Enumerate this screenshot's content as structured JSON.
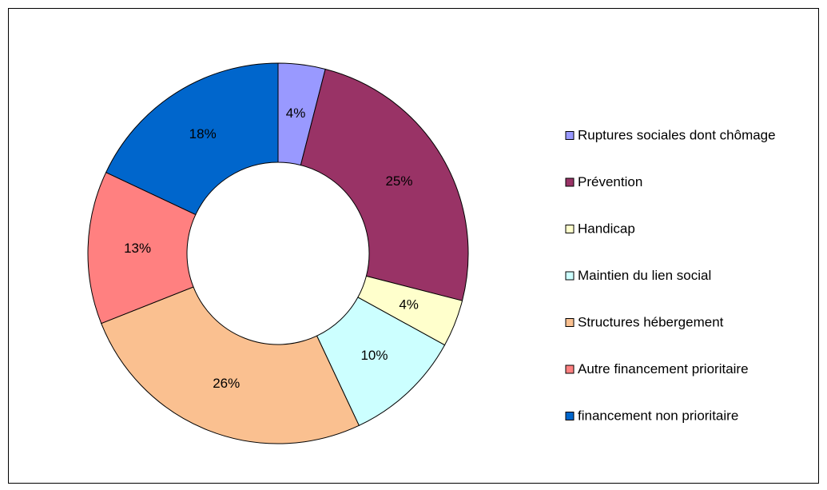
{
  "chart_data": {
    "type": "donut",
    "categories": [
      "Ruptures sociales dont chômage",
      "Prévention",
      "Handicap",
      "Maintien du lien social",
      "Structures hébergement",
      "Autre financement prioritaire",
      "financement non prioritaire"
    ],
    "values": [
      4,
      25,
      4,
      10,
      26,
      13,
      18
    ],
    "value_labels": [
      "4%",
      "25%",
      "4%",
      "10%",
      "26%",
      "13%",
      "18%"
    ],
    "colors": [
      "#9999ff",
      "#993366",
      "#ffffcc",
      "#ccffff",
      "#fac090",
      "#ff8080",
      "#0066cc"
    ],
    "legend": "right"
  }
}
